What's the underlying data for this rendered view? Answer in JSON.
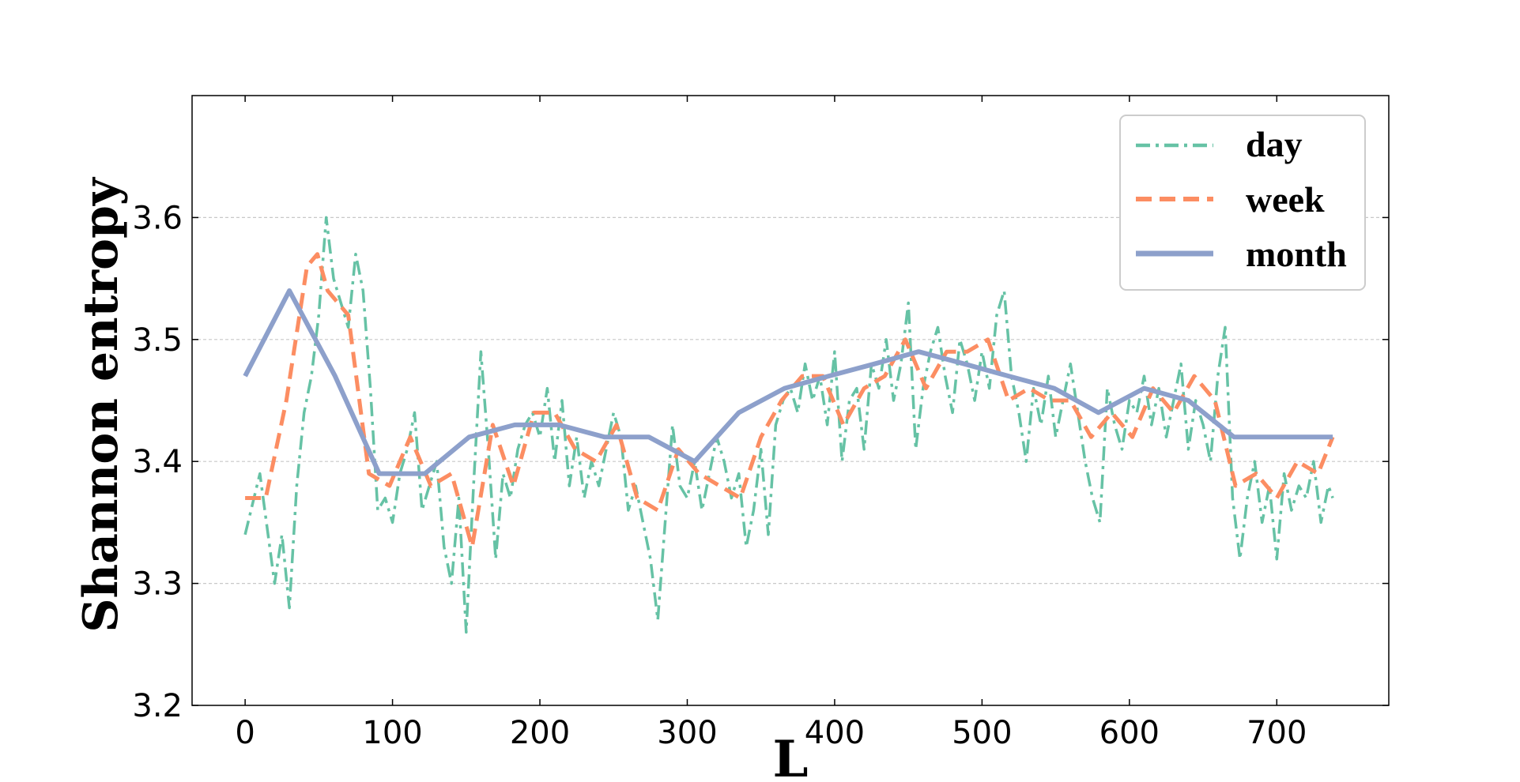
{
  "chart_data": {
    "type": "line",
    "title": "",
    "xlabel": "L",
    "ylabel": "Shannon entropy",
    "xlim": [
      -36,
      776
    ],
    "ylim": [
      3.2,
      3.7
    ],
    "xticks": [
      0,
      100,
      200,
      300,
      400,
      500,
      600,
      700
    ],
    "xtick_labels": [
      "0",
      "100",
      "200",
      "300",
      "400",
      "500",
      "600",
      "700"
    ],
    "yticks": [
      3.2,
      3.3,
      3.4,
      3.5,
      3.6
    ],
    "ytick_labels": [
      "3.2",
      "3.3",
      "3.4",
      "3.5",
      "3.6"
    ],
    "grid": "horizontal dashed",
    "legend_position": "top-right",
    "series": [
      {
        "name": "day",
        "color": "#66c2a5",
        "style": "dashdot",
        "x": [
          0,
          10,
          20,
          25,
          30,
          35,
          40,
          45,
          50,
          55,
          60,
          65,
          70,
          75,
          80,
          85,
          90,
          95,
          100,
          105,
          110,
          115,
          120,
          125,
          130,
          135,
          140,
          145,
          150,
          155,
          160,
          165,
          170,
          175,
          180,
          185,
          190,
          195,
          200,
          205,
          210,
          215,
          220,
          225,
          230,
          235,
          240,
          245,
          250,
          255,
          260,
          265,
          270,
          275,
          280,
          285,
          290,
          295,
          300,
          305,
          310,
          315,
          320,
          325,
          330,
          335,
          340,
          345,
          350,
          355,
          360,
          365,
          370,
          375,
          380,
          385,
          390,
          395,
          400,
          405,
          410,
          415,
          420,
          425,
          430,
          435,
          440,
          445,
          450,
          455,
          460,
          465,
          470,
          475,
          480,
          485,
          490,
          495,
          500,
          505,
          510,
          515,
          520,
          525,
          530,
          535,
          540,
          545,
          550,
          555,
          560,
          565,
          570,
          575,
          580,
          585,
          590,
          595,
          600,
          605,
          610,
          615,
          620,
          625,
          630,
          635,
          640,
          645,
          650,
          655,
          660,
          665,
          670,
          675,
          680,
          685,
          690,
          695,
          700,
          705,
          710,
          715,
          720,
          725,
          730,
          735,
          738
        ],
        "values": [
          3.34,
          3.39,
          3.3,
          3.34,
          3.28,
          3.38,
          3.44,
          3.47,
          3.52,
          3.6,
          3.55,
          3.53,
          3.51,
          3.57,
          3.54,
          3.46,
          3.36,
          3.37,
          3.35,
          3.39,
          3.41,
          3.44,
          3.36,
          3.38,
          3.4,
          3.33,
          3.3,
          3.37,
          3.26,
          3.38,
          3.49,
          3.41,
          3.32,
          3.39,
          3.37,
          3.41,
          3.43,
          3.44,
          3.42,
          3.46,
          3.4,
          3.45,
          3.38,
          3.42,
          3.37,
          3.4,
          3.38,
          3.41,
          3.44,
          3.42,
          3.36,
          3.38,
          3.35,
          3.32,
          3.27,
          3.35,
          3.43,
          3.38,
          3.37,
          3.4,
          3.36,
          3.39,
          3.42,
          3.4,
          3.37,
          3.39,
          3.33,
          3.36,
          3.41,
          3.34,
          3.43,
          3.45,
          3.46,
          3.44,
          3.48,
          3.45,
          3.47,
          3.43,
          3.49,
          3.4,
          3.45,
          3.46,
          3.41,
          3.48,
          3.46,
          3.5,
          3.45,
          3.48,
          3.53,
          3.41,
          3.46,
          3.49,
          3.51,
          3.47,
          3.44,
          3.5,
          3.48,
          3.45,
          3.49,
          3.46,
          3.52,
          3.54,
          3.47,
          3.44,
          3.4,
          3.46,
          3.43,
          3.47,
          3.42,
          3.45,
          3.48,
          3.44,
          3.4,
          3.37,
          3.35,
          3.46,
          3.43,
          3.41,
          3.45,
          3.44,
          3.47,
          3.43,
          3.46,
          3.42,
          3.45,
          3.48,
          3.41,
          3.45,
          3.43,
          3.4,
          3.47,
          3.51,
          3.37,
          3.32,
          3.37,
          3.4,
          3.35,
          3.38,
          3.32,
          3.39,
          3.36,
          3.38,
          3.37,
          3.4,
          3.35,
          3.38,
          3.37
        ]
      },
      {
        "name": "week",
        "color": "#fc8d62",
        "style": "dashed",
        "x": [
          0,
          14,
          28,
          42,
          49,
          56,
          70,
          84,
          98,
          112,
          126,
          140,
          154,
          168,
          182,
          196,
          210,
          224,
          238,
          252,
          266,
          280,
          294,
          308,
          322,
          336,
          350,
          364,
          378,
          392,
          406,
          420,
          434,
          448,
          462,
          476,
          490,
          504,
          518,
          532,
          546,
          560,
          574,
          588,
          602,
          616,
          630,
          644,
          658,
          672,
          686,
          700,
          714,
          728,
          738
        ],
        "values": [
          3.37,
          3.37,
          3.45,
          3.56,
          3.57,
          3.54,
          3.52,
          3.39,
          3.38,
          3.42,
          3.38,
          3.39,
          3.33,
          3.43,
          3.38,
          3.44,
          3.44,
          3.41,
          3.4,
          3.43,
          3.37,
          3.36,
          3.41,
          3.39,
          3.38,
          3.37,
          3.42,
          3.45,
          3.47,
          3.47,
          3.43,
          3.46,
          3.47,
          3.5,
          3.46,
          3.49,
          3.49,
          3.5,
          3.45,
          3.46,
          3.45,
          3.45,
          3.42,
          3.44,
          3.42,
          3.46,
          3.44,
          3.47,
          3.45,
          3.38,
          3.39,
          3.37,
          3.4,
          3.39,
          3.42
        ]
      },
      {
        "name": "month",
        "color": "#8da0cb",
        "style": "solid",
        "x": [
          0,
          30,
          61,
          91,
          122,
          152,
          183,
          213,
          244,
          274,
          305,
          335,
          366,
          396,
          427,
          457,
          488,
          518,
          549,
          579,
          610,
          640,
          671,
          701,
          738
        ],
        "values": [
          3.47,
          3.54,
          3.47,
          3.39,
          3.39,
          3.42,
          3.43,
          3.43,
          3.42,
          3.42,
          3.4,
          3.44,
          3.46,
          3.47,
          3.48,
          3.49,
          3.48,
          3.47,
          3.46,
          3.44,
          3.46,
          3.45,
          3.42,
          3.42,
          3.42
        ]
      }
    ]
  }
}
